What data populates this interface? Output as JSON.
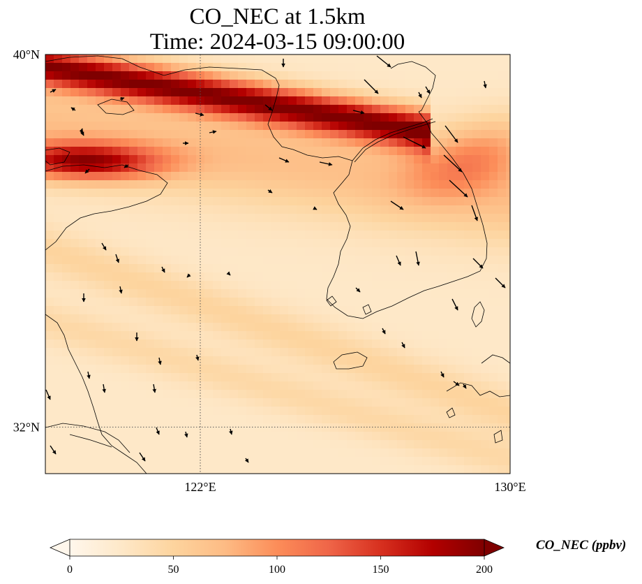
{
  "title": {
    "line1": "CO_NEC at 1.5km",
    "line2": "Time: 2024-03-15 09:00:00"
  },
  "map": {
    "lon_range": [
      118,
      130
    ],
    "lat_range": [
      31,
      40
    ],
    "xticks": [
      {
        "value": 122,
        "label": "122°E"
      },
      {
        "value": 130,
        "label": "130°E"
      }
    ],
    "yticks": [
      {
        "value": 40,
        "label": "40°N"
      },
      {
        "value": 32,
        "label": "32°N"
      }
    ],
    "gridlines": "dotted at 122°E and 32°N",
    "colormap": "OrRd",
    "features": [
      "coastlines",
      "wind-vectors",
      "CO concentration field"
    ]
  },
  "colorbar": {
    "label": "CO_NEC (ppbv)",
    "min": 0,
    "max": 200,
    "ticks": [
      "0",
      "50",
      "100",
      "150",
      "200"
    ],
    "extend": "both",
    "colors": [
      "#fff7ec",
      "#fee8c8",
      "#fdd49e",
      "#fdbb84",
      "#fc8d59",
      "#ef6548",
      "#d7301f",
      "#b30000",
      "#7f0000"
    ]
  }
}
